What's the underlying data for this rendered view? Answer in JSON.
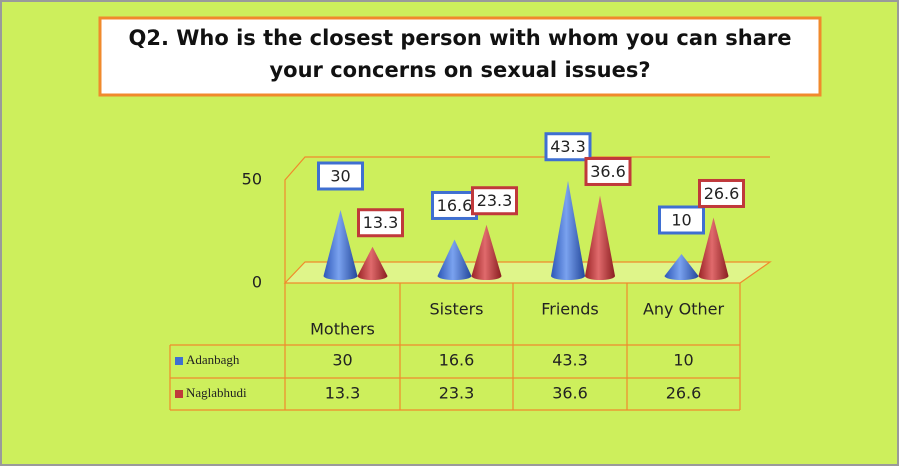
{
  "chart_data": {
    "type": "cone",
    "title": "Q2. Who is the closest person with whom you can share your concerns on sexual issues?",
    "categories": [
      "Mothers",
      "Sisters",
      "Friends",
      "Any Other"
    ],
    "series": [
      {
        "name": "Adanbagh",
        "color": "#3f6fd1",
        "values": [
          30,
          16.6,
          43.3,
          10
        ]
      },
      {
        "name": "Naglabhudi",
        "color": "#c0393b",
        "values": [
          13.3,
          23.3,
          36.6,
          26.6
        ]
      }
    ],
    "ylim": [
      0,
      50
    ],
    "yticks": [
      0,
      50
    ]
  }
}
